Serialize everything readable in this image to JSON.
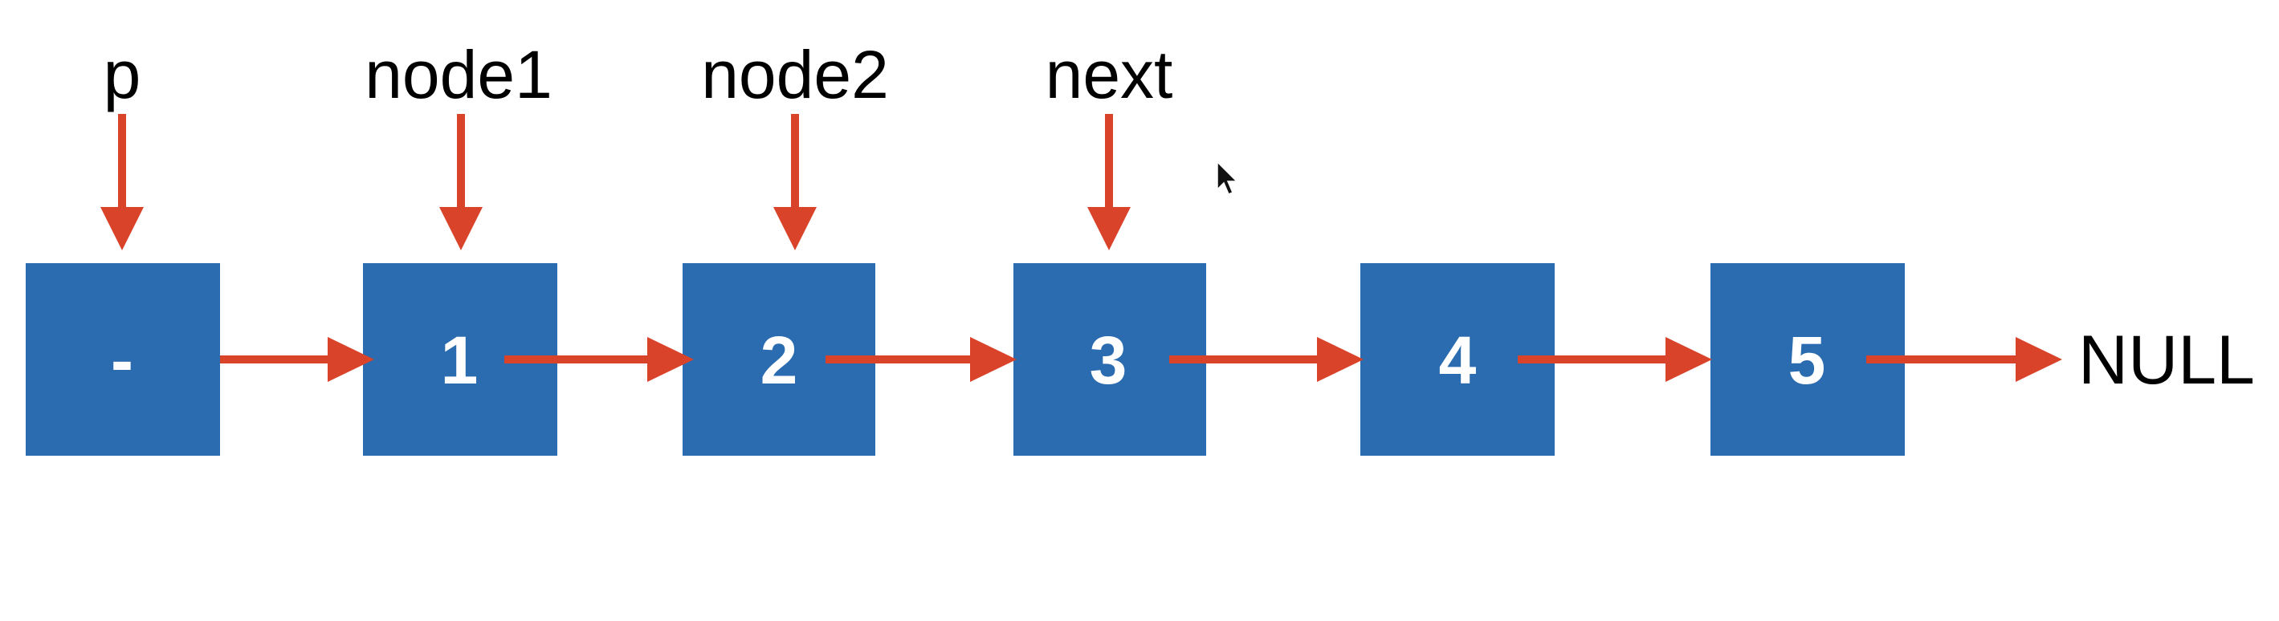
{
  "nodes": [
    {
      "label": "-"
    },
    {
      "label": "1"
    },
    {
      "label": "2"
    },
    {
      "label": "3"
    },
    {
      "label": "4"
    },
    {
      "label": "5"
    }
  ],
  "pointers": [
    {
      "label": "p",
      "target_node": 0
    },
    {
      "label": "node1",
      "target_node": 1
    },
    {
      "label": "node2",
      "target_node": 2
    },
    {
      "label": "next",
      "target_node": 3
    }
  ],
  "terminal": {
    "label": "NULL"
  },
  "colors": {
    "node_fill": "#2b6cb0",
    "arrow": "#d9432a",
    "node_text": "#ffffff",
    "label_text": "#000000"
  }
}
